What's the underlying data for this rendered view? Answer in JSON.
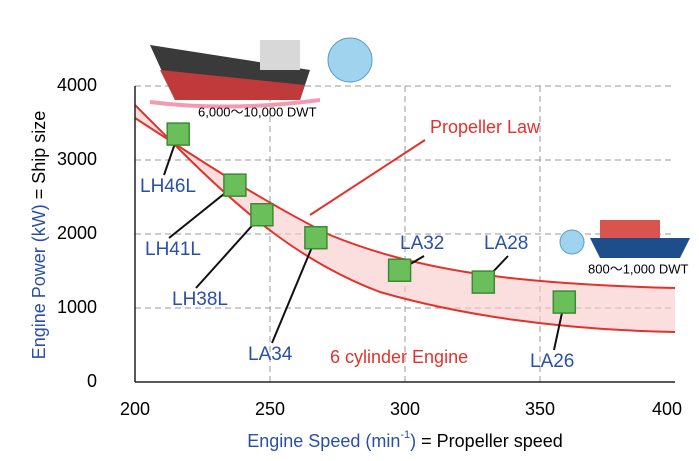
{
  "chart_data": {
    "type": "scatter",
    "ylabel_main": "Engine Power (kW)",
    "ylabel_rest": "= Ship size",
    "xlabel_main": "Engine Speed (min",
    "xlabel_sup": "-1",
    "xlabel_close": ")",
    "xlabel_rest": "= Propeller speed",
    "labels": [
      "LH46L",
      "LH41L",
      "LH38L",
      "LA34",
      "LA32",
      "LA28",
      "LA26"
    ],
    "x": [
      216,
      237,
      247,
      267,
      298,
      329,
      359
    ],
    "values": [
      3350,
      2660,
      2260,
      1950,
      1510,
      1350,
      1080
    ],
    "color": "#6abf5a",
    "xlim": [
      200,
      400
    ],
    "xticks": [
      200,
      250,
      300,
      350,
      400
    ],
    "ylim": [
      0,
      4000
    ],
    "yticks": [
      0,
      1000,
      2000,
      3000,
      4000
    ],
    "grid": true,
    "annotations": [
      "Propeller Law",
      "6 cylinder Engine",
      "6,000～10,000 DWT",
      "800～1,000 DWT"
    ]
  }
}
